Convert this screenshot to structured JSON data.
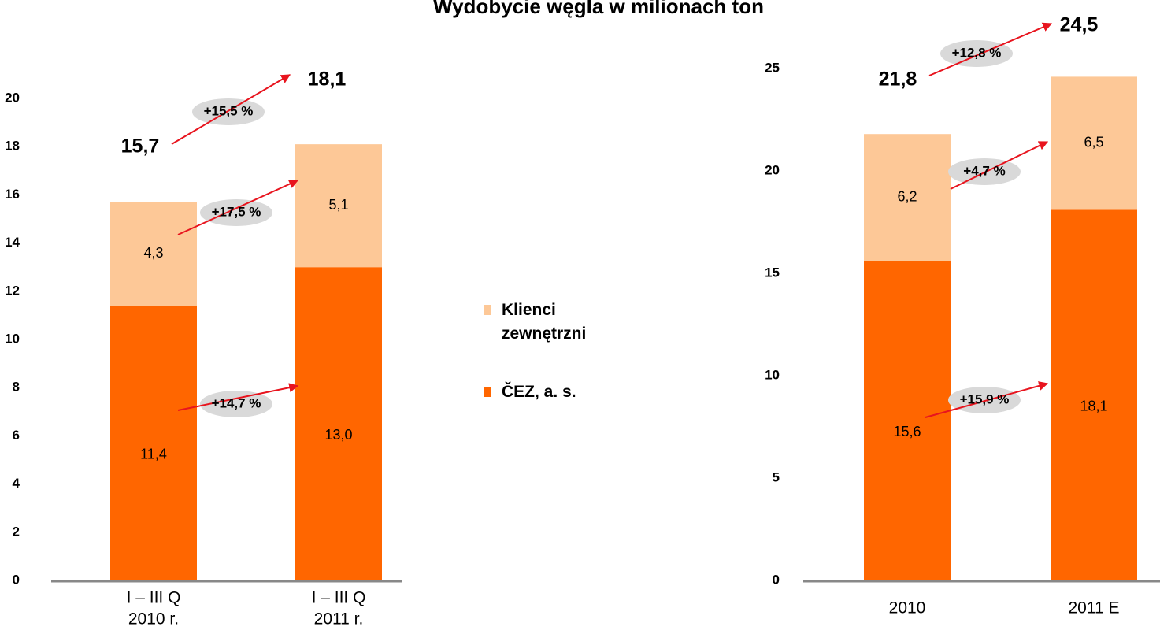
{
  "chart_data": [
    {
      "type": "bar",
      "stacked": true,
      "title": "Wydobycie węgla w milionach ton",
      "categories": [
        [
          "I – III Q",
          "2010 r."
        ],
        [
          "I – III Q",
          "2011 r."
        ]
      ],
      "series": [
        {
          "name": "ČEZ, a. s.",
          "color": "#ff6600",
          "values": [
            11.4,
            13.0
          ],
          "value_labels": [
            "11,4",
            "13,0"
          ]
        },
        {
          "name": "Klienci zewnętrzni",
          "color": "#fdc897",
          "values": [
            4.3,
            5.1
          ],
          "value_labels": [
            "4,3",
            "5,1"
          ]
        }
      ],
      "totals": {
        "values": [
          15.7,
          18.1
        ],
        "value_labels": [
          "15,7",
          "18,1"
        ]
      },
      "annotations": [
        "+14,7 %",
        "+17,5 %",
        "+15,5 %"
      ],
      "ylim": [
        0,
        20
      ],
      "yticks": [
        0,
        2,
        4,
        6,
        8,
        10,
        12,
        14,
        16,
        18,
        20
      ]
    },
    {
      "type": "bar",
      "stacked": true,
      "categories": [
        [
          "2010"
        ],
        [
          "2011 E"
        ]
      ],
      "series": [
        {
          "name": "ČEZ, a. s.",
          "color": "#ff6600",
          "values": [
            15.6,
            18.1
          ],
          "value_labels": [
            "15,6",
            "18,1"
          ]
        },
        {
          "name": "Klienci zewnętrzni",
          "color": "#fdc897",
          "values": [
            6.2,
            6.5
          ],
          "value_labels": [
            "6,2",
            "6,5"
          ]
        }
      ],
      "totals": {
        "values": [
          21.8,
          24.5
        ],
        "value_labels": [
          "21,8",
          "24,5"
        ]
      },
      "annotations": [
        "+15,9 %",
        "+4,7 %",
        "+12,8 %"
      ],
      "ylim": [
        0,
        25
      ],
      "yticks": [
        0,
        5,
        10,
        15,
        20,
        25
      ]
    }
  ]
}
